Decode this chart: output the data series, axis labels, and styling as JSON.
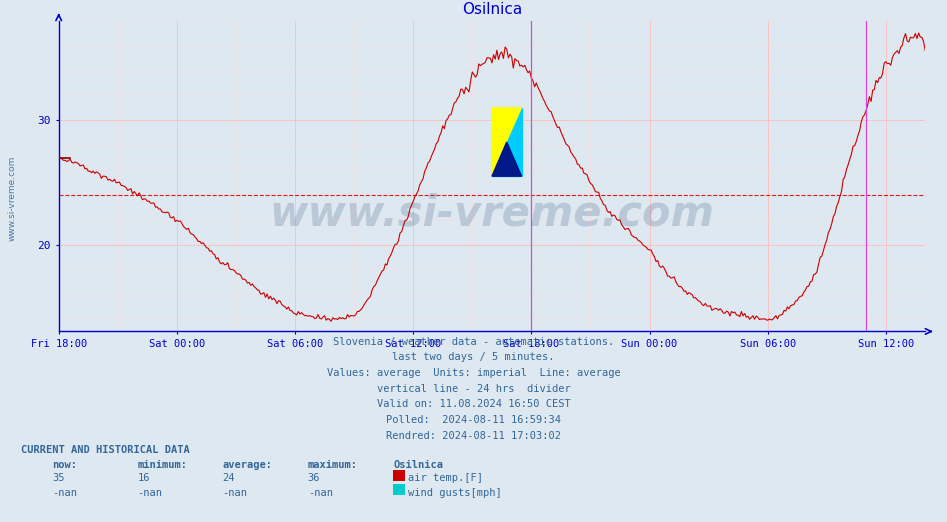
{
  "title": "Osilnica",
  "title_color": "#0000cc",
  "bg_color": "#dde8f0",
  "plot_bg_color": "#dde8f0",
  "line_color": "#cc0000",
  "grid_major_color": "#ffbbbb",
  "grid_minor_color": "#ffdddd",
  "axis_color": "#0000cc",
  "tick_color": "#0000cc",
  "ylim": [
    13,
    38
  ],
  "yticks": [
    20,
    30
  ],
  "xticklabels": [
    "Fri 18:00",
    "Sat 00:00",
    "Sat 06:00",
    "Sat 12:00",
    "Sat 18:00",
    "Sun 00:00",
    "Sun 06:00",
    "Sun 12:00"
  ],
  "watermark": "www.si-vreme.com",
  "watermark_color": "#1a3a6a",
  "watermark_alpha": 0.18,
  "side_text": "www.si-vreme.com",
  "side_text_color": "#336699",
  "avg_line_y": 24,
  "avg_line_color": "#cc0000",
  "vline_color": "#dd44dd",
  "caption_lines": [
    "Slovenia / weather data - automatic stations.",
    "last two days / 5 minutes.",
    "Values: average  Units: imperial  Line: average",
    "vertical line - 24 hrs  divider",
    "Valid on: 11.08.2024 16:50 CEST",
    "Polled:  2024-08-11 16:59:34",
    "Rendred: 2024-08-11 17:03:02"
  ],
  "caption_color": "#336699",
  "table_header": "CURRENT AND HISTORICAL DATA",
  "col_headers": [
    "now:",
    "minimum:",
    "average:",
    "maximum:",
    "Osilnica"
  ],
  "row1_vals": [
    "35",
    "16",
    "24",
    "36"
  ],
  "row1_label": "air temp.[F]",
  "row1_color": "#cc0000",
  "row2_vals": [
    "-nan",
    "-nan",
    "-nan",
    "-nan"
  ],
  "row2_label": "wind gusts[mph]",
  "row2_color": "#00cccc",
  "table_color": "#336699",
  "n_points": 529,
  "hours_total": 44,
  "tick_hours": [
    0,
    6,
    12,
    18,
    24,
    30,
    36,
    42
  ],
  "vline1_hour": 24,
  "vline2_hour": 41.0,
  "logo_hour": 22,
  "logo_temp": 25.5
}
